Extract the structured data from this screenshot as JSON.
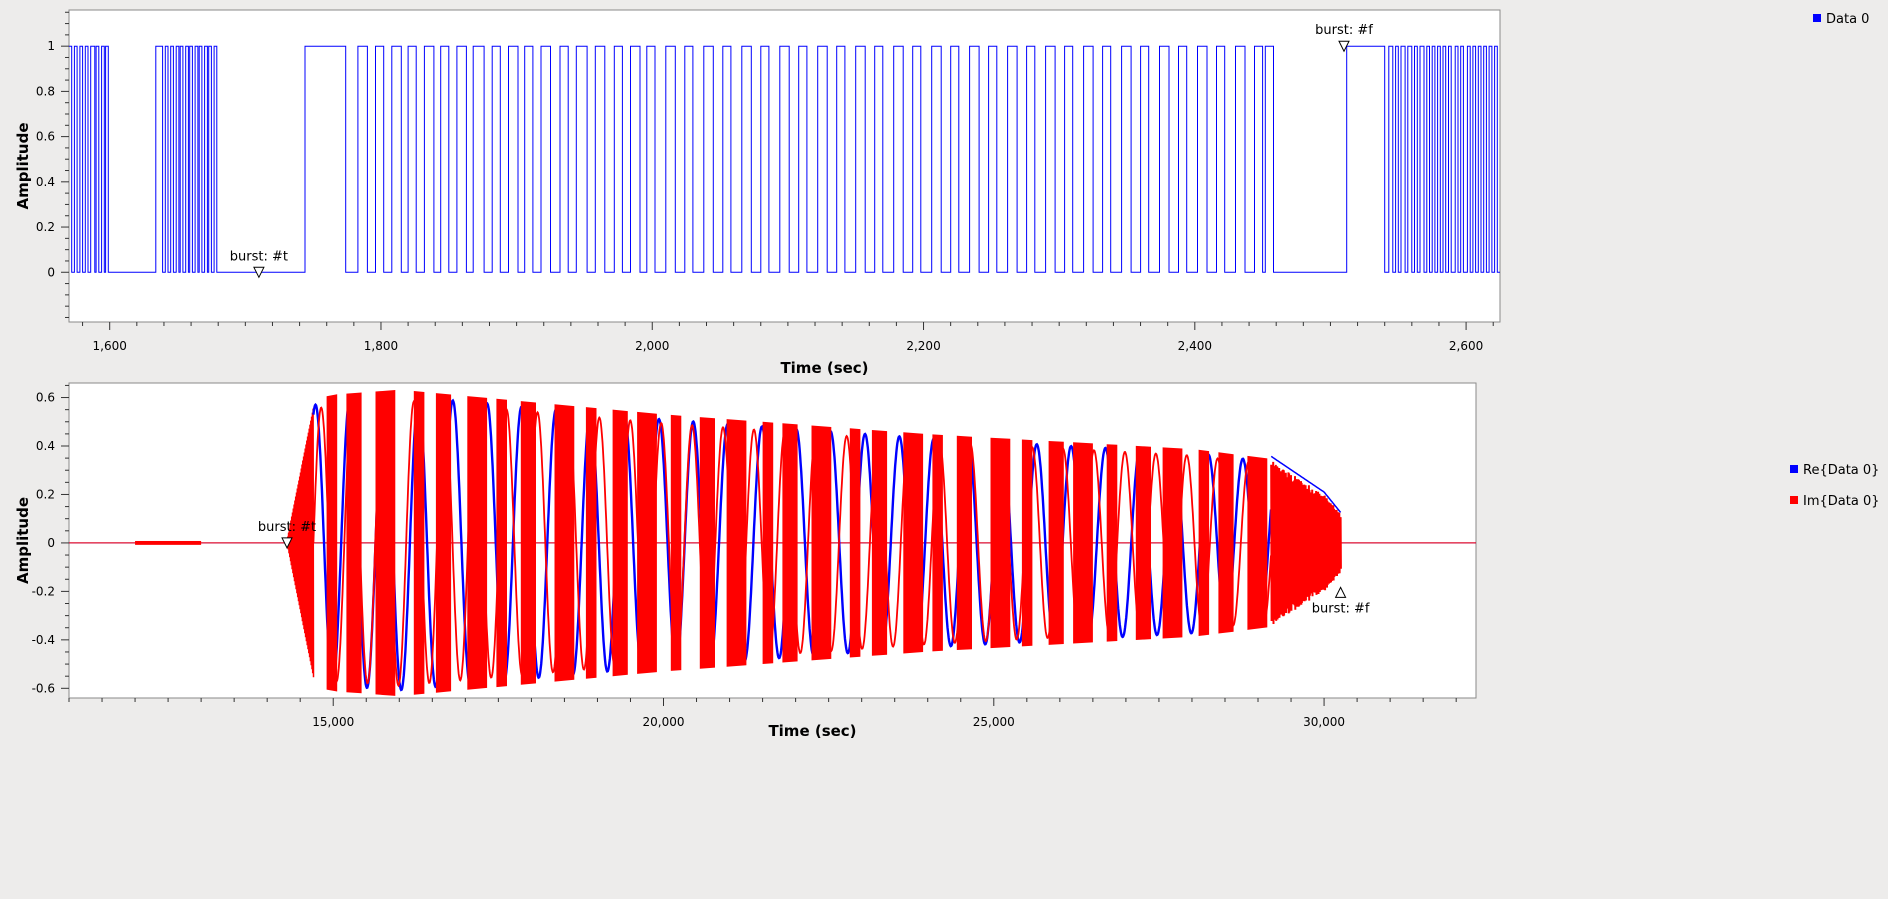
{
  "chart_data": [
    {
      "type": "line",
      "xlabel": "Time (sec)",
      "ylabel": "Amplitude",
      "xlim": [
        1570,
        2625
      ],
      "ylim": [
        -0.22,
        1.16
      ],
      "xticks": [
        1600,
        1800,
        2000,
        2200,
        2400,
        2600
      ],
      "xtick_labels": [
        "1,600",
        "1,800",
        "2,000",
        "2,200",
        "2,400",
        "2,600"
      ],
      "yticks": [
        0,
        0.2,
        0.4,
        0.6,
        0.8,
        1
      ],
      "ytick_labels": [
        "0",
        "0.2",
        "0.4",
        "0.6",
        "0.8",
        "1"
      ],
      "grid": false,
      "legend_position": "top-right",
      "series": [
        {
          "name": "Data 0",
          "color": "#0000ff",
          "shape": "binary-step",
          "high_intervals": [
            [
              1574,
              1576
            ],
            [
              1578,
              1580
            ],
            [
              1582,
              1584
            ],
            [
              1586,
              1589
            ],
            [
              1590,
              1592
            ],
            [
              1594,
              1596
            ],
            [
              1597,
              1599
            ],
            [
              1634,
              1639
            ],
            [
              1641,
              1643
            ],
            [
              1645,
              1647
            ],
            [
              1649,
              1651
            ],
            [
              1652,
              1654
            ],
            [
              1656,
              1658
            ],
            [
              1659,
              1661
            ],
            [
              1663,
              1665
            ],
            [
              1666,
              1668
            ],
            [
              1670,
              1672
            ],
            [
              1673,
              1675
            ],
            [
              1677,
              1679
            ],
            [
              1744,
              1774
            ],
            [
              1783,
              1790
            ],
            [
              1796,
              1802
            ],
            [
              1808,
              1815
            ],
            [
              1820,
              1826
            ],
            [
              1832,
              1839
            ],
            [
              1844,
              1850
            ],
            [
              1856,
              1863
            ],
            [
              1868,
              1876
            ],
            [
              1882,
              1888
            ],
            [
              1894,
              1901
            ],
            [
              1906,
              1912
            ],
            [
              1918,
              1925
            ],
            [
              1932,
              1938
            ],
            [
              1944,
              1952
            ],
            [
              1958,
              1965
            ],
            [
              1972,
              1978
            ],
            [
              1984,
              1991
            ],
            [
              1996,
              2002
            ],
            [
              2010,
              2017
            ],
            [
              2024,
              2030
            ],
            [
              2038,
              2045
            ],
            [
              2052,
              2058
            ],
            [
              2066,
              2073
            ],
            [
              2080,
              2086
            ],
            [
              2094,
              2101
            ],
            [
              2108,
              2114
            ],
            [
              2122,
              2129
            ],
            [
              2136,
              2142
            ],
            [
              2150,
              2157
            ],
            [
              2164,
              2170
            ],
            [
              2178,
              2185
            ],
            [
              2192,
              2198
            ],
            [
              2206,
              2213
            ],
            [
              2220,
              2226
            ],
            [
              2234,
              2241
            ],
            [
              2248,
              2254
            ],
            [
              2262,
              2269
            ],
            [
              2276,
              2282
            ],
            [
              2290,
              2297
            ],
            [
              2304,
              2310
            ],
            [
              2318,
              2325
            ],
            [
              2332,
              2338
            ],
            [
              2346,
              2353
            ],
            [
              2360,
              2366
            ],
            [
              2374,
              2381
            ],
            [
              2388,
              2394
            ],
            [
              2402,
              2409
            ],
            [
              2416,
              2422
            ],
            [
              2430,
              2437
            ],
            [
              2444,
              2450
            ],
            [
              2452,
              2458
            ],
            [
              2512,
              2540
            ],
            [
              2543,
              2546
            ],
            [
              2548,
              2550
            ],
            [
              2552,
              2555
            ],
            [
              2557,
              2560
            ],
            [
              2562,
              2564
            ],
            [
              2566,
              2569
            ],
            [
              2571,
              2573
            ],
            [
              2575,
              2577
            ],
            [
              2579,
              2581
            ],
            [
              2583,
              2585
            ],
            [
              2587,
              2589
            ],
            [
              2592,
              2594
            ],
            [
              2596,
              2598
            ],
            [
              2601,
              2603
            ],
            [
              2605,
              2607
            ],
            [
              2609,
              2611
            ],
            [
              2613,
              2615
            ],
            [
              2617,
              2619
            ],
            [
              2621,
              2623
            ]
          ]
        }
      ],
      "annotations": [
        {
          "text": "burst: #t",
          "x": 1710,
          "y": 0,
          "marker": "triangle-down"
        },
        {
          "text": "burst: #f",
          "x": 2510,
          "y": 1,
          "marker": "triangle-down"
        }
      ]
    },
    {
      "type": "line",
      "xlabel": "Time (sec)",
      "ylabel": "Amplitude",
      "xlim": [
        11000,
        32300
      ],
      "ylim": [
        -0.64,
        0.66
      ],
      "xticks": [
        15000,
        20000,
        25000,
        30000
      ],
      "xtick_labels": [
        "15,000",
        "20,000",
        "25,000",
        "30,000"
      ],
      "yticks": [
        -0.6,
        -0.4,
        -0.2,
        0,
        0.2,
        0.4,
        0.6
      ],
      "ytick_labels": [
        "-0.6",
        "-0.4",
        "-0.2",
        "0",
        "0.2",
        "0.4",
        "0.6"
      ],
      "grid": false,
      "legend_position": "top-right",
      "series": [
        {
          "name": "Re{Data 0}",
          "color": "#0000ff"
        },
        {
          "name": "Im{Data 0}",
          "color": "#ff0000"
        }
      ],
      "envelope": {
        "signal_start": 14700,
        "signal_end": 30250,
        "preamble_start": 14300,
        "tail_start": 29200,
        "x": [
          14700,
          15000,
          16000,
          18000,
          20000,
          22000,
          24000,
          26000,
          28000,
          29200,
          30000,
          30250
        ],
        "amplitude": [
          0.58,
          0.6,
          0.62,
          0.57,
          0.52,
          0.48,
          0.44,
          0.41,
          0.38,
          0.34,
          0.2,
          0.12
        ]
      },
      "annotations": [
        {
          "text": "burst: #t",
          "x": 14300,
          "y": 0,
          "marker": "triangle-down"
        },
        {
          "text": "burst: #f",
          "x": 30250,
          "y": -0.2,
          "marker": "triangle-up"
        }
      ]
    }
  ]
}
